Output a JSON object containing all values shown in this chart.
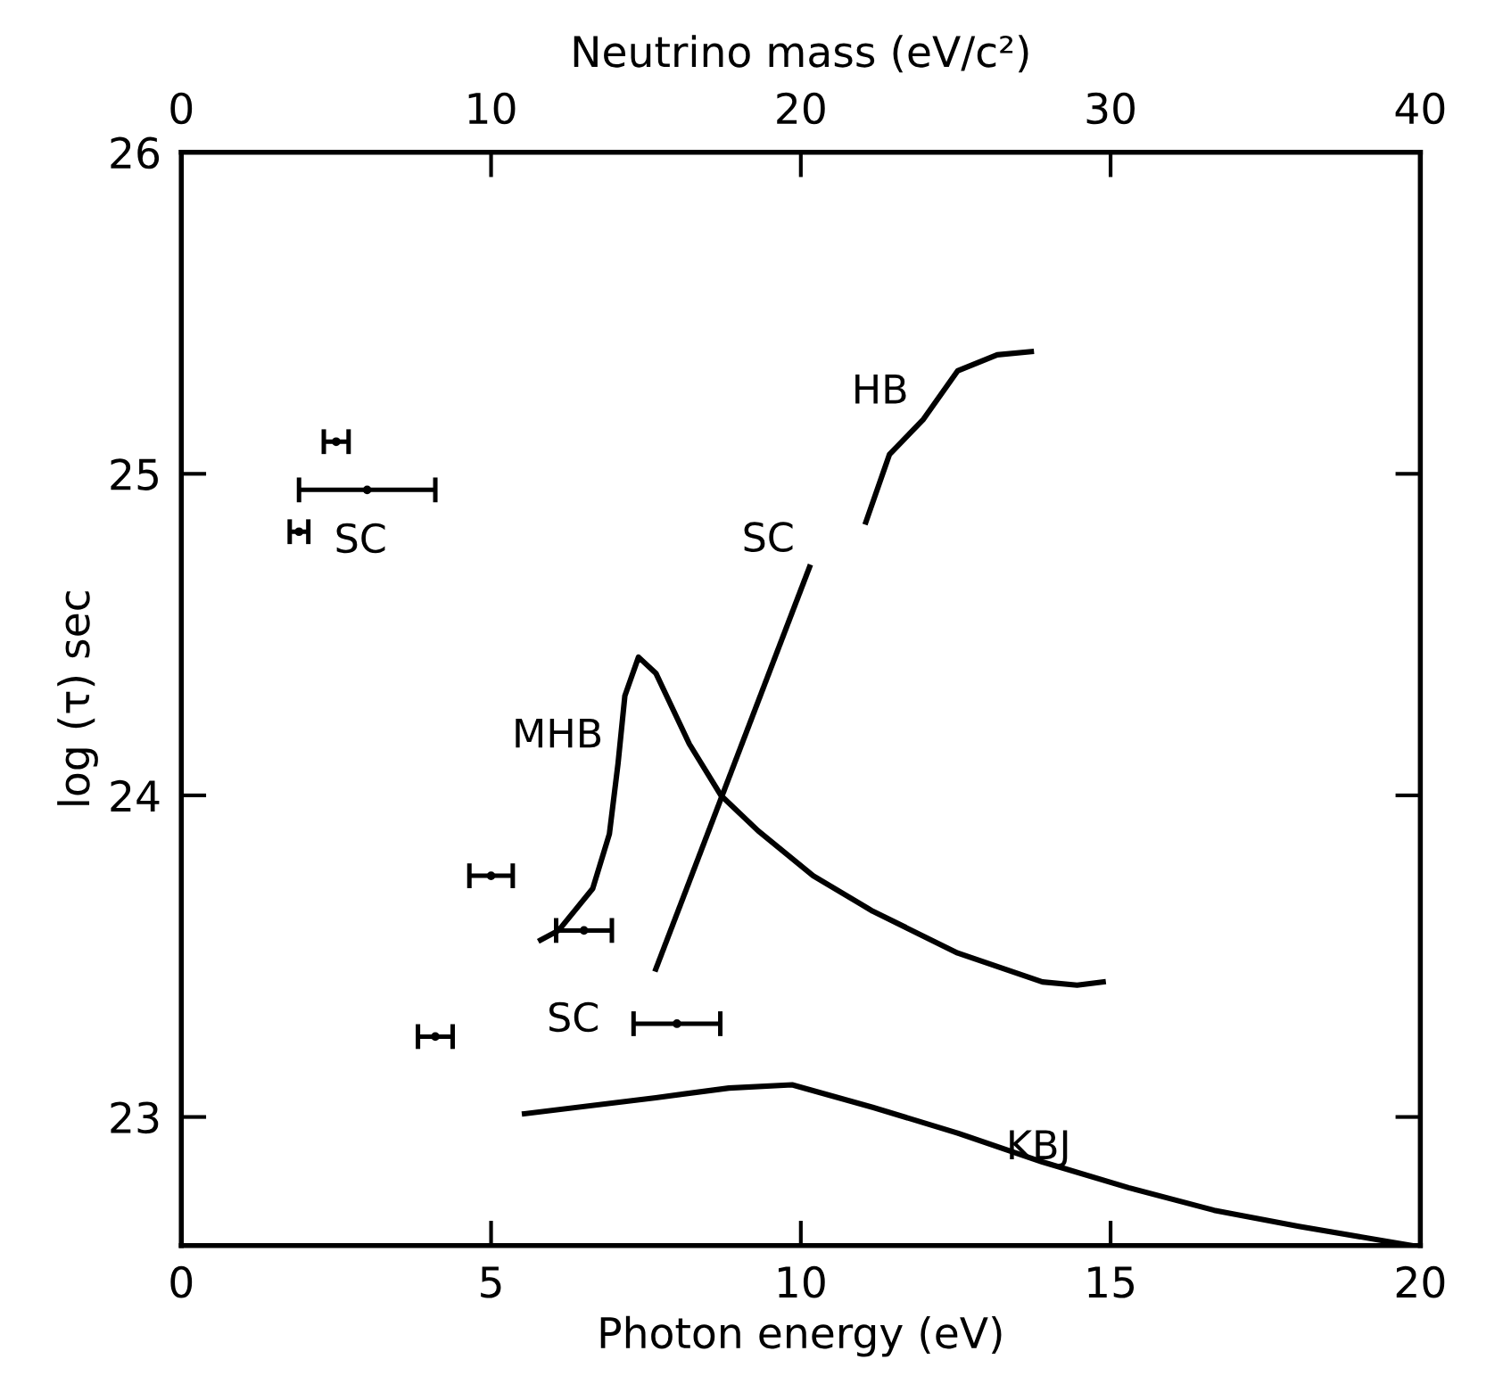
{
  "chart_data": {
    "type": "line",
    "xlabel": "Photon energy (eV)",
    "ylabel": "log (τ) sec",
    "x2label": "Neutrino mass (eV/c²)",
    "xlim": [
      0,
      20
    ],
    "xticks": [
      0,
      5,
      10,
      15,
      20
    ],
    "x2lim": [
      0,
      40
    ],
    "x2ticks": [
      0,
      10,
      20,
      30,
      40
    ],
    "ylim": [
      22.6,
      26
    ],
    "yticks": [
      23,
      24,
      25,
      26
    ],
    "grid": false,
    "legend": false,
    "line_style": "solid",
    "series": [
      {
        "type": "scatter",
        "name": "SC",
        "marker": "circle",
        "color": "#000000",
        "x": [
          2.5,
          3.0,
          1.9
        ],
        "values": [
          25.1,
          24.95,
          24.82
        ],
        "xerrors": [
          0.2,
          1.1,
          0.15
        ]
      },
      {
        "type": "scatter",
        "name": "SC",
        "marker": "circle",
        "color": "#000000",
        "x": [
          5.0,
          6.5,
          4.1,
          8.0
        ],
        "values": [
          23.75,
          23.58,
          23.25,
          23.29
        ],
        "xerrors": [
          0.35,
          0.45,
          0.28,
          0.7
        ]
      },
      {
        "color": "#000000",
        "x": [
          5.8,
          6.09,
          6.64,
          6.91,
          7.05,
          7.16,
          7.38,
          7.66,
          8.2,
          8.71,
          9.31,
          10.2,
          11.16,
          12.53,
          13.9,
          14.46,
          14.88
        ],
        "values": [
          23.55,
          23.58,
          23.71,
          23.88,
          24.1,
          24.31,
          24.43,
          24.38,
          24.16,
          24.0,
          23.89,
          23.75,
          23.64,
          23.51,
          23.42,
          23.41,
          23.42
        ]
      },
      {
        "color": "#000000",
        "x": [
          7.66,
          10.14
        ],
        "values": [
          23.46,
          24.71
        ]
      },
      {
        "color": "#000000",
        "x": [
          11.05,
          11.43,
          11.98,
          12.53,
          13.17,
          13.72
        ],
        "values": [
          24.85,
          25.06,
          25.17,
          25.32,
          25.37,
          25.38
        ]
      },
      {
        "color": "#000000",
        "x": [
          5.54,
          7.66,
          8.84,
          9.86,
          11.16,
          12.53,
          13.9,
          15.29,
          16.67,
          18.04,
          19.86
        ],
        "values": [
          23.01,
          23.06,
          23.09,
          23.1,
          23.03,
          22.95,
          22.86,
          22.78,
          22.71,
          22.66,
          22.6
        ]
      }
    ],
    "annotations": [
      {
        "text": "MHB",
        "x": 7.05,
        "y": 24.1
      },
      {
        "text": "SC",
        "x": 10.14,
        "y": 24.71
      },
      {
        "text": "HB",
        "x": 11.98,
        "y": 25.17
      },
      {
        "text": "KBJ",
        "x": 14.6,
        "y": 22.82
      }
    ]
  }
}
